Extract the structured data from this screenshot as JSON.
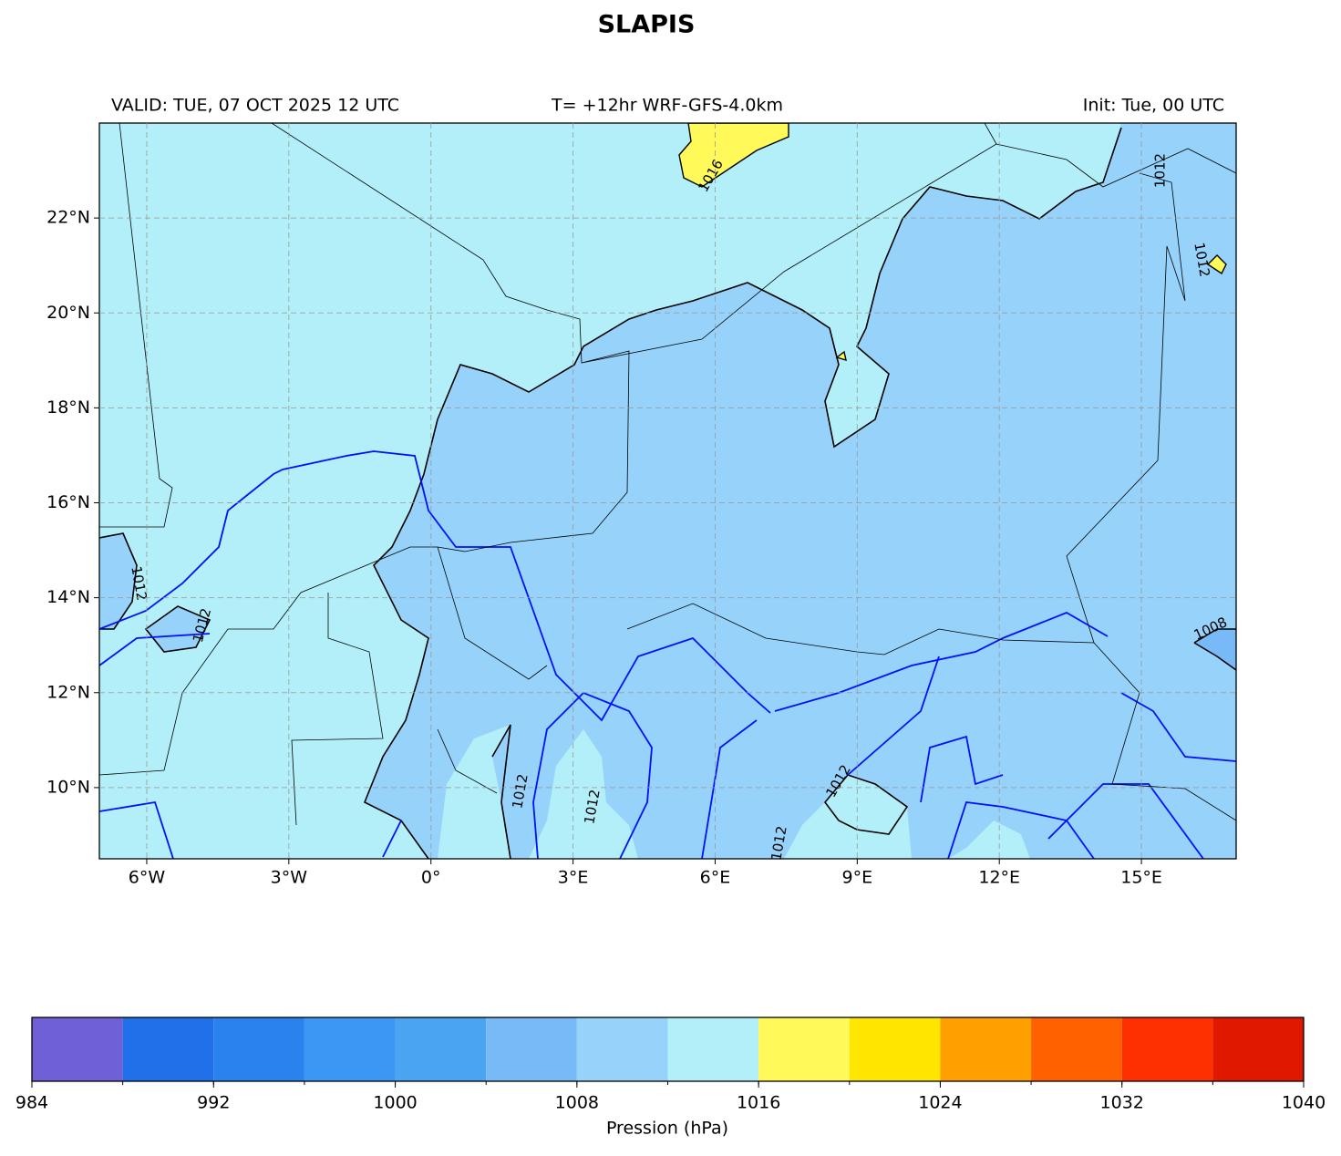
{
  "chart_data": {
    "type": "map",
    "title": "SLAPIS",
    "subtitle_left": "VALID: TUE, 07 OCT 2025 12 UTC",
    "subtitle_center": "T= +12hr WRF-GFS-4.0km",
    "subtitle_right": "Init: Tue, 00 UTC",
    "xlim": [
      -7,
      17
    ],
    "ylim": [
      8.5,
      24
    ],
    "xticks": [
      {
        "value": -6,
        "label": "6°W"
      },
      {
        "value": -3,
        "label": "3°W"
      },
      {
        "value": 0,
        "label": "0°"
      },
      {
        "value": 3,
        "label": "3°E"
      },
      {
        "value": 6,
        "label": "6°E"
      },
      {
        "value": 9,
        "label": "9°E"
      },
      {
        "value": 12,
        "label": "12°E"
      },
      {
        "value": 15,
        "label": "15°E"
      }
    ],
    "yticks": [
      {
        "value": 10,
        "label": "10°N"
      },
      {
        "value": 12,
        "label": "12°N"
      },
      {
        "value": 14,
        "label": "14°N"
      },
      {
        "value": 16,
        "label": "16°N"
      },
      {
        "value": 18,
        "label": "18°N"
      },
      {
        "value": 20,
        "label": "20°N"
      },
      {
        "value": 22,
        "label": "22°N"
      }
    ],
    "grid": true,
    "contour_labels": [
      "1016",
      "1012",
      "1012",
      "1012",
      "1012",
      "1012",
      "1012",
      "1012",
      "1008",
      "1012"
    ],
    "colorbar": {
      "label": "Pression (hPa)",
      "levels": [
        984,
        988,
        992,
        996,
        1000,
        1004,
        1008,
        1012,
        1016,
        1020,
        1024,
        1028,
        1032,
        1036,
        1040
      ],
      "colors": [
        "#7060d8",
        "#2070ea",
        "#2a82ee",
        "#3c96f4",
        "#4aa4f2",
        "#78baf8",
        "#97d2fa",
        "#b3eff8",
        "#fffa5a",
        "#ffe600",
        "#ffa000",
        "#ff6000",
        "#ff3000",
        "#e01800"
      ],
      "ticks": [
        984,
        992,
        1000,
        1008,
        1016,
        1024,
        1032,
        1040
      ]
    }
  }
}
